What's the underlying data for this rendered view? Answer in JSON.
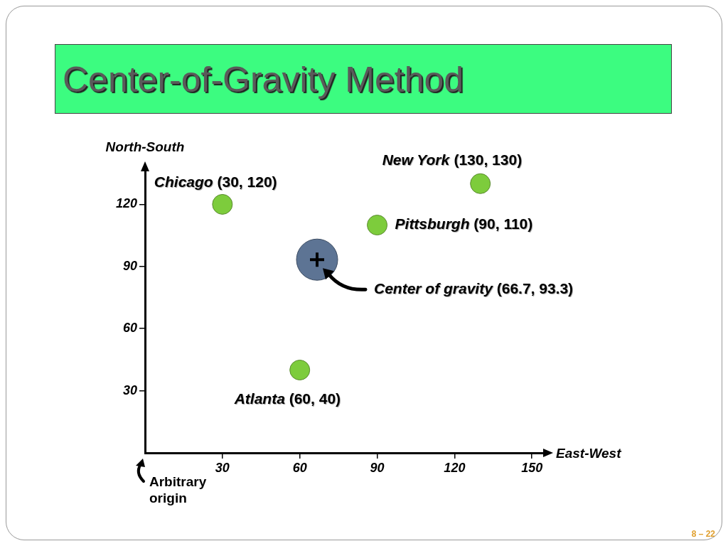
{
  "chart_data": {
    "type": "scatter",
    "title": "Center-of-Gravity Method",
    "xlabel": "East-West",
    "ylabel": "North-South",
    "xlim": [
      0,
      156
    ],
    "ylim": [
      0,
      138
    ],
    "xticks": [
      30,
      60,
      90,
      120,
      150
    ],
    "yticks": [
      30,
      60,
      90,
      120
    ],
    "grid": false,
    "legend": false,
    "marker": "circle",
    "series": [
      {
        "color": "#7dcc3c",
        "x": [
          30,
          130,
          90,
          60
        ],
        "values": [
          120,
          130,
          110,
          40
        ]
      },
      {
        "color": "#5d7494",
        "x": [
          66.7
        ],
        "values": [
          93.3
        ]
      }
    ],
    "annotations": [
      {
        "text": "Chicago (30, 120)",
        "x": 30,
        "y": 120
      },
      {
        "text": "New York (130, 130)",
        "x": 130,
        "y": 130
      },
      {
        "text": "Pittsburgh (90, 110)",
        "x": 90,
        "y": 110
      },
      {
        "text": "Atlanta (60, 40)",
        "x": 60,
        "y": 40
      },
      "Center of gravity (66.7, 93.3)",
      "Arbitrary origin",
      "8 – 22"
    ]
  }
}
